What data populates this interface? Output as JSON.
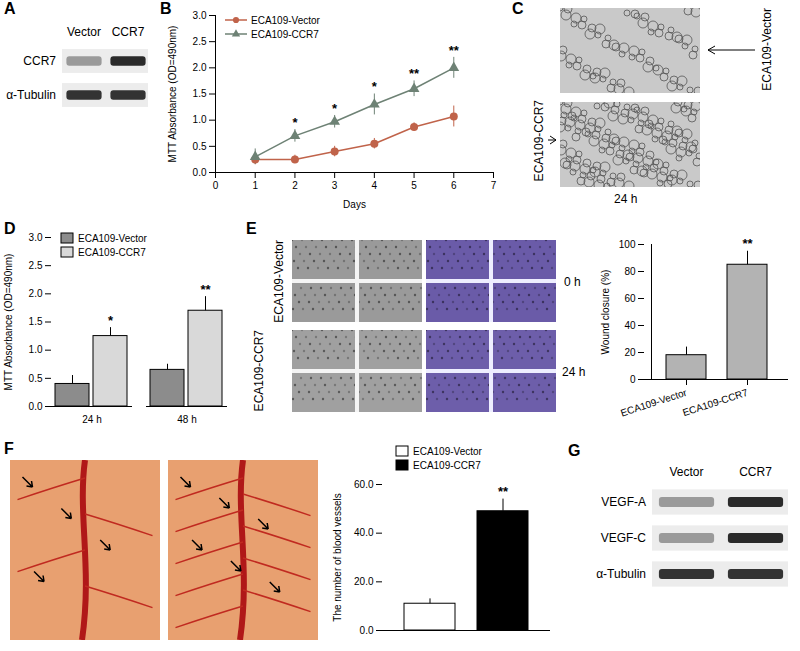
{
  "panels": {
    "A": {
      "letter": "A",
      "columns": [
        "Vector",
        "CCR7"
      ],
      "rows": [
        "CCR7",
        "α-Tubulin"
      ]
    },
    "B": {
      "letter": "B"
    },
    "C": {
      "letter": "C",
      "labels": [
        "ECA109-Vector",
        "ECA109-CCR7"
      ],
      "time": "24 h"
    },
    "D": {
      "letter": "D"
    },
    "E": {
      "letter": "E",
      "rows": [
        "ECA109-Vector",
        "ECA109-CCR7"
      ],
      "times": [
        "0 h",
        "24 h"
      ]
    },
    "F": {
      "letter": "F"
    },
    "G": {
      "letter": "G",
      "columns": [
        "Vector",
        "CCR7"
      ],
      "rows": [
        "VEGF-A",
        "VEGF-C",
        "α-Tubulin"
      ]
    }
  },
  "chart_data": [
    {
      "type": "line",
      "x_label": "Days",
      "y_label": "MTT Absorbance (OD=490nm)",
      "x": [
        1,
        2,
        3,
        4,
        5,
        6
      ],
      "series": [
        {
          "name": "ECA109-Vector",
          "color": "#c0634a",
          "marker": "circle",
          "values": [
            0.25,
            0.25,
            0.4,
            0.55,
            0.87,
            1.07
          ],
          "errors": [
            0.1,
            0.08,
            0.1,
            0.1,
            0.08,
            0.2
          ]
        },
        {
          "name": "ECA109-CCR7",
          "color": "#6e8275",
          "marker": "triangle",
          "values": [
            0.3,
            0.7,
            0.97,
            1.3,
            1.6,
            2.0
          ],
          "errors": [
            0.15,
            0.12,
            0.12,
            0.2,
            0.15,
            0.2
          ],
          "significance": [
            null,
            "*",
            "*",
            "*",
            "**",
            "**"
          ]
        }
      ],
      "xlim": [
        0,
        7
      ],
      "xticks": [
        0,
        1,
        2,
        3,
        4,
        5,
        6,
        7
      ],
      "ylim": [
        0,
        3
      ],
      "yticks": [
        {
          "value": 0,
          "label": "0.0"
        },
        {
          "value": 0.5,
          "label": "0.5"
        },
        {
          "value": 1,
          "label": "1.0"
        },
        {
          "value": 1.5,
          "label": "1.5"
        },
        {
          "value": 2,
          "label": "2.0"
        },
        {
          "value": 2.5,
          "label": "2.5"
        },
        {
          "value": 3,
          "label": "3.0"
        }
      ],
      "legend": "top-left"
    },
    {
      "type": "bar",
      "y_label": "MTT Absorbance (OD=490nm)",
      "categories": [
        "24 h",
        "48 h"
      ],
      "series": [
        {
          "name": "ECA109-Vector",
          "color": "#8c8c8c",
          "values": [
            0.4,
            0.65
          ],
          "errors": [
            0.15,
            0.1
          ]
        },
        {
          "name": "ECA109-CCR7",
          "color": "#d9d9d9",
          "values": [
            1.25,
            1.7
          ],
          "errors": [
            0.15,
            0.25
          ],
          "significance": [
            "*",
            "**"
          ]
        }
      ],
      "ylim": [
        0,
        3
      ],
      "yticks": [
        {
          "value": 0,
          "label": "0.0"
        },
        {
          "value": 0.5,
          "label": "0.5"
        },
        {
          "value": 1,
          "label": "1.0"
        },
        {
          "value": 1.5,
          "label": "1.5"
        },
        {
          "value": 2,
          "label": "2.0"
        },
        {
          "value": 2.5,
          "label": "2.5"
        },
        {
          "value": 3,
          "label": "3.0"
        }
      ],
      "legend": "top-left"
    },
    {
      "type": "bar",
      "y_label": "Wound closure (%)",
      "categories": [
        "ECA109-Vector",
        "ECA109-CCR7"
      ],
      "values": [
        18,
        85
      ],
      "errors": [
        6,
        10
      ],
      "significance": [
        null,
        "**"
      ],
      "color": "#b3b3b3",
      "ylim": [
        0,
        100
      ],
      "yticks": [
        0,
        20,
        40,
        60,
        80,
        100
      ]
    },
    {
      "type": "bar",
      "y_label": "The number of blood vessels",
      "categories": [
        "ECA109-Vector",
        "ECA109-CCR7"
      ],
      "values": [
        11,
        49
      ],
      "errors": [
        2,
        5
      ],
      "significance": [
        null,
        "**"
      ],
      "colors": [
        "#ffffff",
        "#000000"
      ],
      "ylim": [
        0,
        60
      ],
      "yticks": [
        {
          "value": 0,
          "label": "0.0"
        },
        {
          "value": 20,
          "label": "20.0"
        },
        {
          "value": 40,
          "label": "40.0"
        },
        {
          "value": 60,
          "label": "60.0"
        }
      ],
      "legend": "top",
      "tick_labels": "y"
    }
  ]
}
